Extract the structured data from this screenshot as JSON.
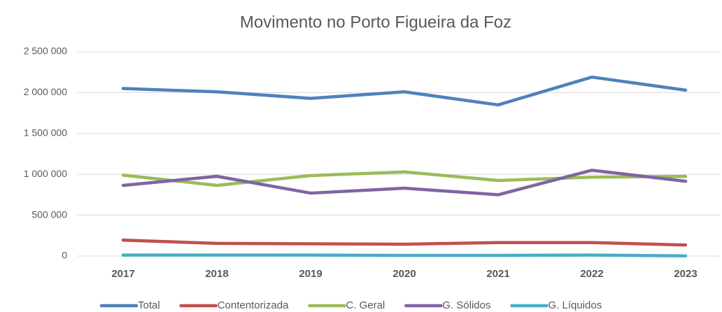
{
  "chart_data": {
    "type": "line",
    "title": "Movimento no Porto Figueira da Foz",
    "categories": [
      "2017",
      "2018",
      "2019",
      "2020",
      "2021",
      "2022",
      "2023"
    ],
    "series": [
      {
        "name": "Total",
        "color": "#4f81bd",
        "values": [
          2050000,
          2010000,
          1930000,
          2010000,
          1850000,
          2190000,
          2030000
        ]
      },
      {
        "name": "Contentorizada",
        "color": "#c0504d",
        "values": [
          195000,
          155000,
          150000,
          145000,
          165000,
          165000,
          135000
        ]
      },
      {
        "name": "C. Geral",
        "color": "#9bbb59",
        "values": [
          990000,
          865000,
          985000,
          1030000,
          925000,
          965000,
          975000
        ]
      },
      {
        "name": "G. Sólidos",
        "color": "#8064a2",
        "values": [
          865000,
          976000,
          770000,
          830000,
          750000,
          1050000,
          915000
        ]
      },
      {
        "name": "G. Líquidos",
        "color": "#4bacc6",
        "values": [
          12000,
          12000,
          12000,
          8000,
          8000,
          12000,
          2000
        ]
      }
    ],
    "ylim": [
      0,
      2500000
    ],
    "yticks": [
      0,
      {
        "value": 500000,
        "label": "500 000"
      },
      {
        "value": 1000000,
        "label": "1 000 000"
      },
      {
        "value": 1500000,
        "label": "1 500 000"
      },
      {
        "value": 2000000,
        "label": "2 000 000"
      },
      {
        "value": 2500000,
        "label": "2 500 000"
      }
    ],
    "grid": true,
    "legend": "bottom"
  }
}
